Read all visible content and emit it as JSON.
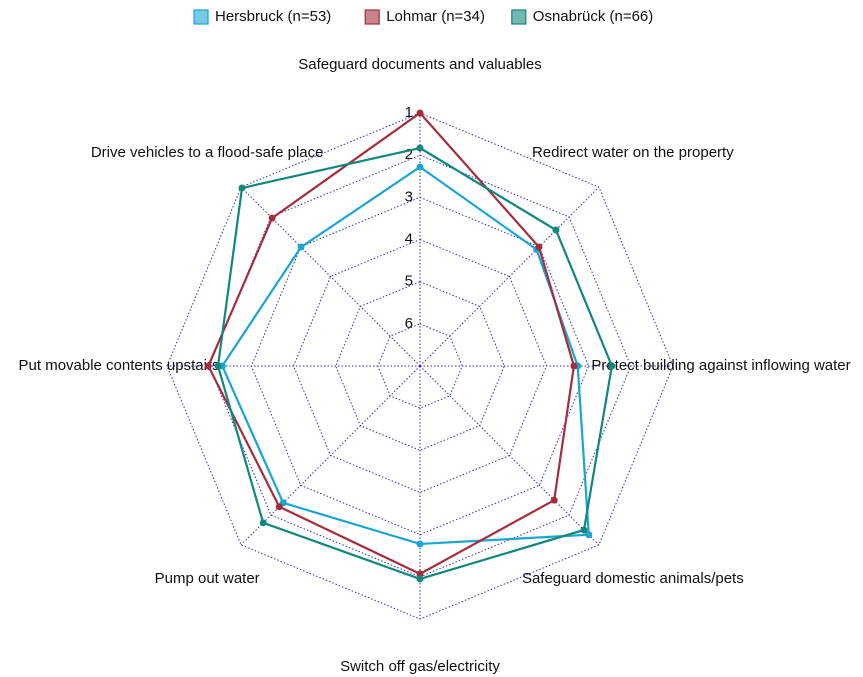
{
  "chart_data": {
    "type": "radar",
    "categories": [
      "Safeguard documents and valuables",
      "Redirect water on the property",
      "Protect building against inflowing water",
      "Safeguard domestic animals/pets",
      "Switch off gas/electricity",
      "Pump out water",
      "Put movable contents upstairs",
      "Drive vehicles to a flood-safe place"
    ],
    "series": [
      {
        "name": "Hersbruck (n=53)",
        "color": "#1aa6d3",
        "values": [
          2.28,
          3.09,
          3.26,
          1.34,
          2.78,
          2.41,
          2.31,
          3.01
        ]
      },
      {
        "name": "Lohmar (n=34)",
        "color": "#a32f3e",
        "values": [
          1.0,
          3.01,
          3.35,
          2.5,
          2.07,
          2.28,
          1.98,
          2.04
        ]
      },
      {
        "name": "Osnabrück (n=66)",
        "color": "#12877e",
        "values": [
          1.83,
          2.44,
          2.45,
          1.5,
          1.95,
          1.74,
          2.21,
          1.03
        ]
      }
    ],
    "rlim": [
      7,
      1
    ],
    "rticks": [
      1,
      2,
      3,
      4,
      5,
      6
    ],
    "grid": true,
    "legend": "top"
  }
}
